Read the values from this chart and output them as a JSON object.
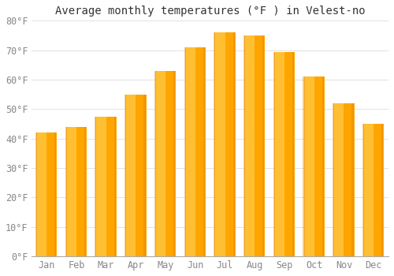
{
  "title": "Average monthly temperatures (°F ) in Velest­no",
  "months": [
    "Jan",
    "Feb",
    "Mar",
    "Apr",
    "May",
    "Jun",
    "Jul",
    "Aug",
    "Sep",
    "Oct",
    "Nov",
    "Dec"
  ],
  "values": [
    42,
    44,
    47.5,
    55,
    63,
    71,
    76,
    75,
    69.5,
    61,
    52,
    45
  ],
  "bar_color_light": "#FFD966",
  "bar_color_main": "#FFA500",
  "bar_color_dark": "#E08000",
  "background_color": "#ffffff",
  "ylim": [
    0,
    80
  ],
  "yticks": [
    0,
    10,
    20,
    30,
    40,
    50,
    60,
    70,
    80
  ],
  "ytick_labels": [
    "0°F",
    "10°F",
    "20°F",
    "30°F",
    "40°F",
    "50°F",
    "60°F",
    "70°F",
    "80°F"
  ],
  "grid_color": "#dddddd",
  "tick_color": "#888888",
  "title_fontsize": 10,
  "axis_fontsize": 8.5,
  "bar_width": 0.7,
  "figsize": [
    5.0,
    3.5
  ],
  "dpi": 100
}
